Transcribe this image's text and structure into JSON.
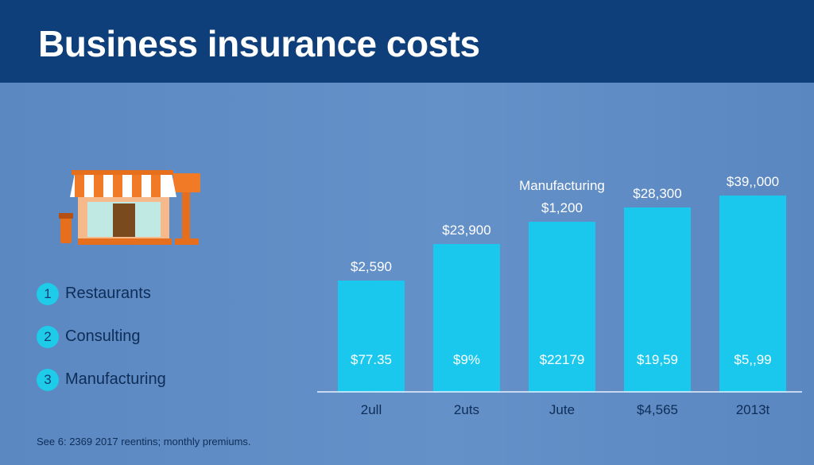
{
  "title": "Business insurance costs",
  "legend": [
    {
      "num": "1",
      "label": "Restaurants"
    },
    {
      "num": "2",
      "label": "Consulting"
    },
    {
      "num": "3",
      "label": "Manufacturing"
    }
  ],
  "footnote": "See 6: 2369 2017 reentins; monthly premiums.",
  "icons": {
    "illustration": "storefront-icon"
  },
  "colors": {
    "header": "#0e3f7a",
    "background": "#6591c9",
    "bar": "#19c8ec",
    "accent": "#1ecbe9"
  },
  "chart_data": {
    "type": "bar",
    "categories": [
      "2ull",
      "2uts",
      "Jute",
      "$4,565",
      "2013t"
    ],
    "values": [
      140,
      186,
      214,
      232,
      247
    ],
    "top_labels": [
      "$2,590",
      "$23,900",
      "$1,200",
      "$28,300",
      "$39,,000"
    ],
    "inner_labels": [
      "$77.35",
      "$9%",
      "$22179",
      "$19,59",
      "$5,,99"
    ],
    "annotation": {
      "text": "Manufacturing",
      "category_index": 2
    },
    "ylim": [
      0,
      260
    ],
    "grid": false,
    "title": "",
    "xlabel": "",
    "ylabel": ""
  }
}
